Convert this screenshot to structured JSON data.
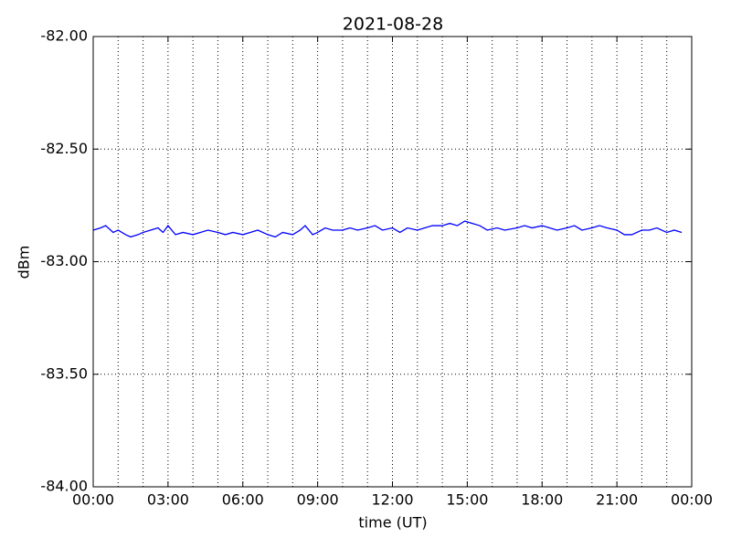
{
  "chart_data": {
    "type": "line",
    "title": "2021-08-28",
    "x_label": "time (UT)",
    "y_label": "dBm",
    "xlim": [
      0,
      24
    ],
    "ylim": [
      -84,
      -82
    ],
    "xticks": [
      {
        "value": 0,
        "label": "00:00"
      },
      {
        "value": 3,
        "label": "03:00"
      },
      {
        "value": 6,
        "label": "06:00"
      },
      {
        "value": 9,
        "label": "09:00"
      },
      {
        "value": 12,
        "label": "12:00"
      },
      {
        "value": 15,
        "label": "15:00"
      },
      {
        "value": 18,
        "label": "18:00"
      },
      {
        "value": 21,
        "label": "21:00"
      },
      {
        "value": 24,
        "label": "00:00"
      }
    ],
    "xminorticks": [
      1,
      2,
      4,
      5,
      7,
      8,
      10,
      11,
      13,
      14,
      16,
      17,
      19,
      20,
      22,
      23
    ],
    "yticks": [
      {
        "value": -84,
        "label": "-84.00"
      },
      {
        "value": -83.5,
        "label": "-83.50"
      },
      {
        "value": -83,
        "label": "-83.00"
      },
      {
        "value": -82.5,
        "label": "-82.50"
      },
      {
        "value": -82,
        "label": "-82.00"
      }
    ],
    "grid": true,
    "series": [
      {
        "color": "#0000ff",
        "x": [
          0.0,
          0.3,
          0.5,
          0.8,
          1.0,
          1.3,
          1.5,
          1.8,
          2.0,
          2.3,
          2.6,
          2.8,
          3.0,
          3.3,
          3.6,
          4.0,
          4.3,
          4.6,
          5.0,
          5.3,
          5.6,
          6.0,
          6.3,
          6.6,
          7.0,
          7.3,
          7.6,
          8.0,
          8.3,
          8.5,
          8.8,
          9.0,
          9.3,
          9.6,
          10.0,
          10.3,
          10.6,
          11.0,
          11.3,
          11.6,
          12.0,
          12.3,
          12.6,
          13.0,
          13.3,
          13.6,
          14.0,
          14.3,
          14.6,
          14.9,
          15.2,
          15.5,
          15.8,
          16.2,
          16.5,
          17.0,
          17.3,
          17.6,
          18.0,
          18.3,
          18.6,
          19.0,
          19.3,
          19.6,
          20.0,
          20.3,
          20.6,
          21.0,
          21.3,
          21.6,
          22.0,
          22.3,
          22.6,
          23.0,
          23.3,
          23.6
        ],
        "values": [
          -82.86,
          -82.85,
          -82.84,
          -82.87,
          -82.86,
          -82.88,
          -82.89,
          -82.88,
          -82.87,
          -82.86,
          -82.85,
          -82.87,
          -82.84,
          -82.88,
          -82.87,
          -82.88,
          -82.87,
          -82.86,
          -82.87,
          -82.88,
          -82.87,
          -82.88,
          -82.87,
          -82.86,
          -82.88,
          -82.89,
          -82.87,
          -82.88,
          -82.86,
          -82.84,
          -82.88,
          -82.87,
          -82.85,
          -82.86,
          -82.86,
          -82.85,
          -82.86,
          -82.85,
          -82.84,
          -82.86,
          -82.85,
          -82.87,
          -82.85,
          -82.86,
          -82.85,
          -82.84,
          -82.84,
          -82.83,
          -82.84,
          -82.82,
          -82.83,
          -82.84,
          -82.86,
          -82.85,
          -82.86,
          -82.85,
          -82.84,
          -82.85,
          -82.84,
          -82.85,
          -82.86,
          -82.85,
          -82.84,
          -82.86,
          -82.85,
          -82.84,
          -82.85,
          -82.86,
          -82.88,
          -82.88,
          -82.86,
          -82.86,
          -82.85,
          -82.87,
          -82.86,
          -82.87
        ]
      }
    ]
  }
}
